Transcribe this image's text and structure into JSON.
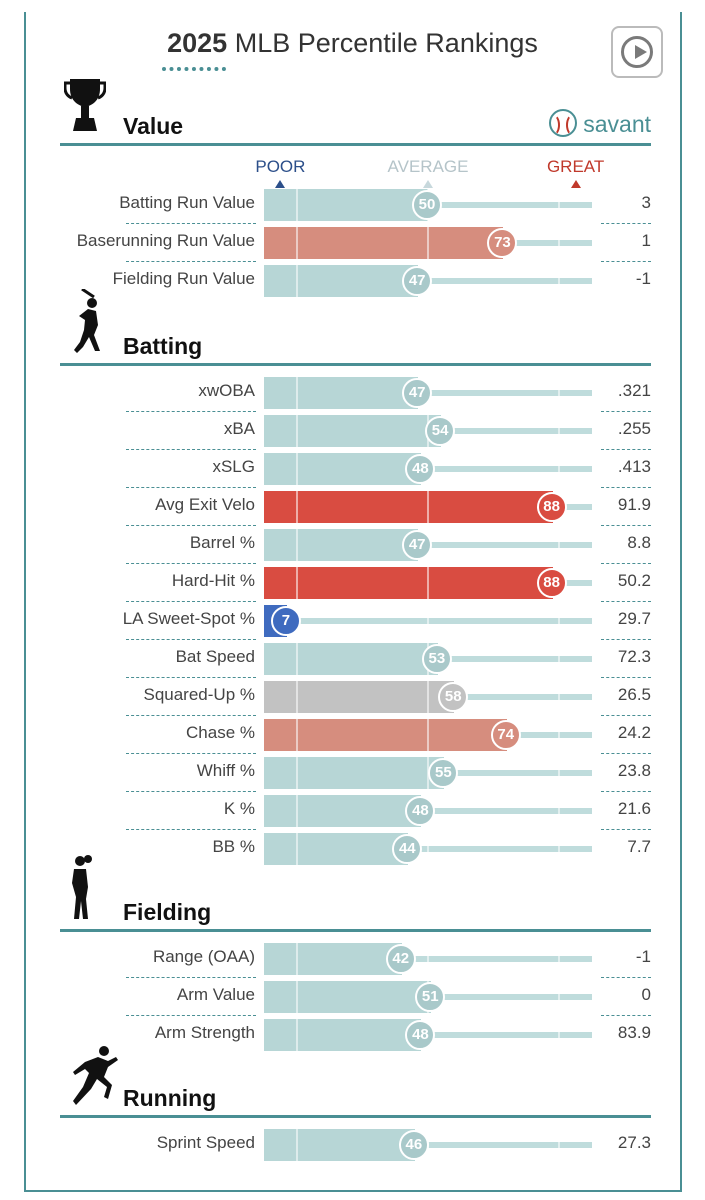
{
  "header": {
    "year": "2025",
    "title_rest": "MLB Percentile Rankings",
    "brand": "savant"
  },
  "scale": {
    "poor": "POOR",
    "average": "AVERAGE",
    "great": "GREAT"
  },
  "colors": {
    "teal": "#4a8f94",
    "bar_average": "#b7d6d6",
    "bar_good": "#d68d7e",
    "bar_great": "#d94c41",
    "bar_poor": "#3f6bbf",
    "bar_gray": "#c2c2c2",
    "bubble_average": "#a9c9ca"
  },
  "chart_data": {
    "type": "bar",
    "xlim": [
      0,
      100
    ],
    "sections": [
      {
        "name": "Value",
        "icon": "trophy-icon",
        "metrics": [
          {
            "label": "Batting Run Value",
            "percentile": 50,
            "value": "3",
            "tier": "average"
          },
          {
            "label": "Baserunning Run Value",
            "percentile": 73,
            "value": "1",
            "tier": "good"
          },
          {
            "label": "Fielding Run Value",
            "percentile": 47,
            "value": "-1",
            "tier": "average"
          }
        ]
      },
      {
        "name": "Batting",
        "icon": "batter-icon",
        "metrics": [
          {
            "label": "xwOBA",
            "percentile": 47,
            "value": ".321",
            "tier": "average"
          },
          {
            "label": "xBA",
            "percentile": 54,
            "value": ".255",
            "tier": "average"
          },
          {
            "label": "xSLG",
            "percentile": 48,
            "value": ".413",
            "tier": "average"
          },
          {
            "label": "Avg Exit Velo",
            "percentile": 88,
            "value": "91.9",
            "tier": "great"
          },
          {
            "label": "Barrel %",
            "percentile": 47,
            "value": "8.8",
            "tier": "average"
          },
          {
            "label": "Hard-Hit %",
            "percentile": 88,
            "value": "50.2",
            "tier": "great"
          },
          {
            "label": "LA Sweet-Spot %",
            "percentile": 7,
            "value": "29.7",
            "tier": "poor"
          },
          {
            "label": "Bat Speed",
            "percentile": 53,
            "value": "72.3",
            "tier": "average"
          },
          {
            "label": "Squared-Up %",
            "percentile": 58,
            "value": "26.5",
            "tier": "gray"
          },
          {
            "label": "Chase %",
            "percentile": 74,
            "value": "24.2",
            "tier": "good"
          },
          {
            "label": "Whiff %",
            "percentile": 55,
            "value": "23.8",
            "tier": "average"
          },
          {
            "label": "K %",
            "percentile": 48,
            "value": "21.6",
            "tier": "average"
          },
          {
            "label": "BB %",
            "percentile": 44,
            "value": "7.7",
            "tier": "average"
          }
        ]
      },
      {
        "name": "Fielding",
        "icon": "fielder-icon",
        "metrics": [
          {
            "label": "Range (OAA)",
            "percentile": 42,
            "value": "-1",
            "tier": "average"
          },
          {
            "label": "Arm Value",
            "percentile": 51,
            "value": "0",
            "tier": "average"
          },
          {
            "label": "Arm Strength",
            "percentile": 48,
            "value": "83.9",
            "tier": "average"
          }
        ]
      },
      {
        "name": "Running",
        "icon": "runner-icon",
        "metrics": [
          {
            "label": "Sprint Speed",
            "percentile": 46,
            "value": "27.3",
            "tier": "average"
          }
        ]
      }
    ]
  }
}
